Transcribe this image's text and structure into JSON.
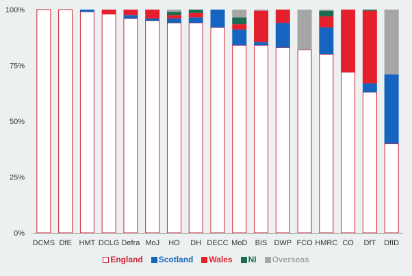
{
  "chart_data": {
    "type": "bar",
    "stacked": true,
    "title": "",
    "xlabel": "",
    "ylabel": "",
    "ylim": [
      0,
      100
    ],
    "y_ticks": [
      "0%",
      "25%",
      "50%",
      "75%",
      "100%"
    ],
    "grid": false,
    "legend_position": "bottom",
    "categories": [
      "DCMS",
      "DfE",
      "HMT",
      "DCLG",
      "Defra",
      "MoJ",
      "HO",
      "DH",
      "DECC",
      "MoD",
      "BIS",
      "DWP",
      "FCO",
      "HMRC",
      "CO",
      "DfT",
      "DfID"
    ],
    "series": [
      {
        "name": "England",
        "color": "#ffffff",
        "outline": "#d0202e",
        "values": [
          100,
          100,
          99,
          98,
          96,
          95,
          94,
          94,
          92,
          84,
          84,
          83,
          82,
          80,
          72,
          63,
          40
        ]
      },
      {
        "name": "Scotland",
        "color": "#1565c0",
        "values": [
          0,
          0,
          1,
          0,
          1.5,
          1,
          2,
          2.5,
          8,
          7,
          1.5,
          11,
          0,
          12,
          0,
          4,
          31
        ]
      },
      {
        "name": "Wales",
        "color": "#e3202b",
        "values": [
          0,
          0,
          0,
          2,
          2.5,
          4,
          1.5,
          2,
          0,
          2.5,
          14,
          6,
          0,
          5,
          28,
          32.5,
          0
        ]
      },
      {
        "name": "NI",
        "color": "#1a6b50",
        "values": [
          0,
          0,
          0,
          0,
          0,
          0,
          1.5,
          1.5,
          0,
          3,
          0,
          0,
          0,
          2.5,
          0,
          0.5,
          0
        ]
      },
      {
        "name": "Overseas",
        "color": "#a6a6a6",
        "values": [
          0,
          0,
          0,
          0,
          0,
          0,
          1,
          0,
          0,
          3.5,
          0.5,
          0,
          18,
          0.5,
          0,
          0,
          29
        ]
      }
    ]
  }
}
